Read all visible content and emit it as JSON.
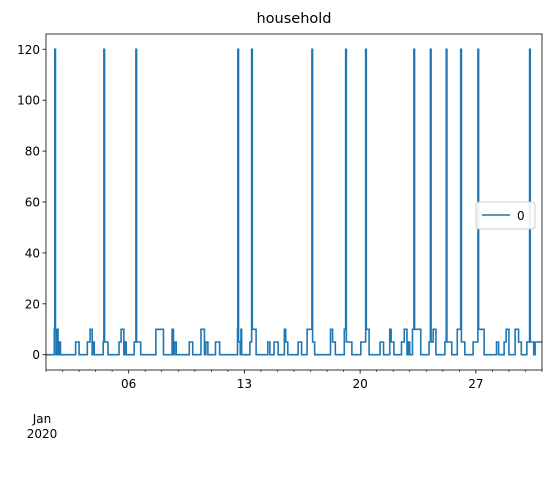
{
  "chart_data": {
    "type": "line",
    "title": "household",
    "xlabel": "",
    "ylabel": "",
    "x_range": [
      "2020-01-01",
      "2020-01-31"
    ],
    "ylim": [
      -6,
      126
    ],
    "y_ticks": [
      0,
      20,
      40,
      60,
      80,
      100,
      120
    ],
    "x_ticks": [
      {
        "label": "06",
        "x": "2020-01-06",
        "major": true
      },
      {
        "label": "13",
        "x": "2020-01-13",
        "major": true
      },
      {
        "label": "20",
        "x": "2020-01-20",
        "major": true
      },
      {
        "label": "27",
        "x": "2020-01-27",
        "major": true
      }
    ],
    "x_minor_ticks": [
      "2020-01-01",
      "2020-01-02",
      "2020-01-03",
      "2020-01-04",
      "2020-01-05",
      "2020-01-07",
      "2020-01-08",
      "2020-01-09",
      "2020-01-10",
      "2020-01-11",
      "2020-01-12",
      "2020-01-14",
      "2020-01-15",
      "2020-01-16",
      "2020-01-17",
      "2020-01-18",
      "2020-01-19",
      "2020-01-21",
      "2020-01-22",
      "2020-01-23",
      "2020-01-24",
      "2020-01-25",
      "2020-01-26",
      "2020-01-28",
      "2020-01-29",
      "2020-01-30",
      "2020-01-31"
    ],
    "x_offset_label": {
      "month": "Jan",
      "year": "2020"
    },
    "grid": false,
    "legend": {
      "position": "center-right",
      "entries": [
        "0"
      ]
    },
    "color": "#1f77b4",
    "series": [
      {
        "name": "0",
        "steps": [
          [
            "2020-01-01 00:00",
            0
          ],
          [
            "2020-01-01 12:00",
            10
          ],
          [
            "2020-01-01 12:45",
            120
          ],
          [
            "2020-01-01 13:45",
            10
          ],
          [
            "2020-01-01 14:30",
            0
          ],
          [
            "2020-01-01 16:30",
            10
          ],
          [
            "2020-01-01 17:30",
            0
          ],
          [
            "2020-01-01 19:00",
            5
          ],
          [
            "2020-01-01 21:00",
            0
          ],
          [
            "2020-01-02 19:00",
            5
          ],
          [
            "2020-01-03 00:00",
            0
          ],
          [
            "2020-01-03 12:00",
            5
          ],
          [
            "2020-01-03 16:00",
            10
          ],
          [
            "2020-01-03 19:00",
            0
          ],
          [
            "2020-01-03 20:00",
            5
          ],
          [
            "2020-01-03 22:00",
            0
          ],
          [
            "2020-01-04 11:00",
            5
          ],
          [
            "2020-01-04 12:00",
            120
          ],
          [
            "2020-01-04 13:00",
            5
          ],
          [
            "2020-01-04 14:00",
            5
          ],
          [
            "2020-01-04 18:00",
            0
          ],
          [
            "2020-01-05 10:00",
            5
          ],
          [
            "2020-01-05 13:00",
            10
          ],
          [
            "2020-01-05 17:00",
            0
          ],
          [
            "2020-01-05 18:30",
            5
          ],
          [
            "2020-01-05 20:30",
            0
          ],
          [
            "2020-01-06 08:00",
            5
          ],
          [
            "2020-01-06 10:30",
            120
          ],
          [
            "2020-01-06 11:30",
            5
          ],
          [
            "2020-01-06 17:30",
            0
          ],
          [
            "2020-01-07 15:30",
            10
          ],
          [
            "2020-01-08 02:30",
            0
          ],
          [
            "2020-01-08 15:00",
            10
          ],
          [
            "2020-01-08 17:00",
            0
          ],
          [
            "2020-01-08 18:30",
            5
          ],
          [
            "2020-01-08 21:00",
            0
          ],
          [
            "2020-01-09 16:00",
            5
          ],
          [
            "2020-01-09 21:00",
            0
          ],
          [
            "2020-01-10 09:00",
            10
          ],
          [
            "2020-01-10 14:00",
            0
          ],
          [
            "2020-01-10 16:00",
            5
          ],
          [
            "2020-01-10 19:00",
            0
          ],
          [
            "2020-01-11 06:00",
            5
          ],
          [
            "2020-01-11 12:00",
            0
          ],
          [
            "2020-01-12 14:00",
            10
          ],
          [
            "2020-01-12 14:30",
            120
          ],
          [
            "2020-01-12 15:30",
            5
          ],
          [
            "2020-01-12 18:00",
            0
          ],
          [
            "2020-01-12 19:00",
            10
          ],
          [
            "2020-01-12 20:00",
            0
          ],
          [
            "2020-01-13 08:00",
            5
          ],
          [
            "2020-01-13 10:30",
            120
          ],
          [
            "2020-01-13 11:30",
            10
          ],
          [
            "2020-01-13 17:00",
            0
          ],
          [
            "2020-01-14 10:00",
            5
          ],
          [
            "2020-01-14 13:00",
            0
          ],
          [
            "2020-01-14 19:00",
            5
          ],
          [
            "2020-01-15 01:00",
            0
          ],
          [
            "2020-01-15 10:00",
            10
          ],
          [
            "2020-01-15 12:00",
            5
          ],
          [
            "2020-01-15 15:00",
            0
          ],
          [
            "2020-01-16 06:00",
            5
          ],
          [
            "2020-01-16 11:00",
            0
          ],
          [
            "2020-01-16 19:00",
            10
          ],
          [
            "2020-01-17 02:00",
            120
          ],
          [
            "2020-01-17 03:00",
            5
          ],
          [
            "2020-01-17 06:00",
            0
          ],
          [
            "2020-01-18 05:00",
            10
          ],
          [
            "2020-01-18 08:00",
            5
          ],
          [
            "2020-01-18 12:00",
            0
          ],
          [
            "2020-01-19 01:00",
            10
          ],
          [
            "2020-01-19 03:00",
            120
          ],
          [
            "2020-01-19 04:00",
            5
          ],
          [
            "2020-01-19 12:00",
            0
          ],
          [
            "2020-01-20 01:00",
            5
          ],
          [
            "2020-01-20 08:00",
            120
          ],
          [
            "2020-01-20 09:00",
            10
          ],
          [
            "2020-01-20 13:00",
            0
          ],
          [
            "2020-01-21 05:00",
            5
          ],
          [
            "2020-01-21 10:00",
            0
          ],
          [
            "2020-01-21 19:00",
            10
          ],
          [
            "2020-01-21 21:00",
            5
          ],
          [
            "2020-01-22 01:00",
            0
          ],
          [
            "2020-01-22 12:00",
            5
          ],
          [
            "2020-01-22 16:00",
            10
          ],
          [
            "2020-01-22 20:00",
            0
          ],
          [
            "2020-01-22 22:00",
            5
          ],
          [
            "2020-01-23 00:00",
            0
          ],
          [
            "2020-01-23 04:00",
            10
          ],
          [
            "2020-01-23 06:00",
            120
          ],
          [
            "2020-01-23 07:00",
            10
          ],
          [
            "2020-01-23 16:00",
            0
          ],
          [
            "2020-01-24 04:00",
            5
          ],
          [
            "2020-01-24 06:00",
            120
          ],
          [
            "2020-01-24 07:00",
            5
          ],
          [
            "2020-01-24 10:00",
            10
          ],
          [
            "2020-01-24 14:00",
            0
          ],
          [
            "2020-01-25 03:00",
            5
          ],
          [
            "2020-01-25 05:00",
            120
          ],
          [
            "2020-01-25 06:00",
            5
          ],
          [
            "2020-01-25 13:00",
            0
          ],
          [
            "2020-01-25 21:00",
            10
          ],
          [
            "2020-01-26 02:00",
            120
          ],
          [
            "2020-01-26 03:00",
            5
          ],
          [
            "2020-01-26 08:00",
            0
          ],
          [
            "2020-01-26 20:00",
            5
          ],
          [
            "2020-01-27 03:00",
            120
          ],
          [
            "2020-01-27 04:00",
            10
          ],
          [
            "2020-01-27 12:00",
            0
          ],
          [
            "2020-01-28 06:00",
            5
          ],
          [
            "2020-01-28 09:00",
            0
          ],
          [
            "2020-01-28 17:00",
            5
          ],
          [
            "2020-01-28 20:00",
            10
          ],
          [
            "2020-01-29 00:00",
            0
          ],
          [
            "2020-01-29 09:00",
            10
          ],
          [
            "2020-01-29 14:00",
            5
          ],
          [
            "2020-01-29 18:00",
            0
          ],
          [
            "2020-01-30 02:00",
            5
          ],
          [
            "2020-01-30 06:00",
            120
          ],
          [
            "2020-01-30 07:00",
            5
          ],
          [
            "2020-01-30 12:00",
            0
          ],
          [
            "2020-01-30 14:00",
            5
          ],
          [
            "2020-01-31 00:00",
            5
          ]
        ]
      }
    ]
  }
}
